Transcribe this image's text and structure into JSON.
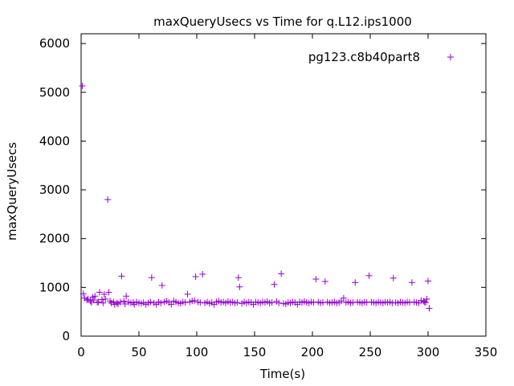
{
  "chart_data": {
    "type": "scatter",
    "title": "maxQueryUsecs vs Time for q.L12.ips1000",
    "xlabel": "Time(s)",
    "ylabel": "maxQueryUsecs",
    "xlim": [
      0,
      350
    ],
    "ylim": [
      0,
      6200
    ],
    "x_ticks": [
      0,
      50,
      100,
      150,
      200,
      250,
      300,
      350
    ],
    "y_ticks": [
      0,
      1000,
      2000,
      3000,
      4000,
      5000,
      6000
    ],
    "grid": false,
    "legend_position": "top-right",
    "color": "#9400d3",
    "marker": "plus",
    "series": [
      {
        "name": "pg123.c8b40part8",
        "points": [
          [
            1,
            5130
          ],
          [
            2,
            870
          ],
          [
            3,
            780
          ],
          [
            5,
            740
          ],
          [
            6,
            760
          ],
          [
            8,
            720
          ],
          [
            9,
            690
          ],
          [
            10,
            800
          ],
          [
            11,
            740
          ],
          [
            12,
            820
          ],
          [
            14,
            690
          ],
          [
            15,
            700
          ],
          [
            16,
            900
          ],
          [
            18,
            750
          ],
          [
            19,
            680
          ],
          [
            20,
            860
          ],
          [
            21,
            760
          ],
          [
            23,
            2800
          ],
          [
            24,
            900
          ],
          [
            25,
            720
          ],
          [
            26,
            680
          ],
          [
            28,
            700
          ],
          [
            29,
            650
          ],
          [
            31,
            680
          ],
          [
            32,
            660
          ],
          [
            34,
            700
          ],
          [
            35,
            1230
          ],
          [
            37,
            720
          ],
          [
            38,
            660
          ],
          [
            39,
            820
          ],
          [
            41,
            700
          ],
          [
            43,
            680
          ],
          [
            45,
            690
          ],
          [
            46,
            650
          ],
          [
            48,
            700
          ],
          [
            50,
            680
          ],
          [
            52,
            670
          ],
          [
            54,
            690
          ],
          [
            56,
            650
          ],
          [
            58,
            680
          ],
          [
            60,
            700
          ],
          [
            61,
            1200
          ],
          [
            63,
            680
          ],
          [
            65,
            650
          ],
          [
            67,
            700
          ],
          [
            69,
            680
          ],
          [
            70,
            1040
          ],
          [
            72,
            700
          ],
          [
            74,
            720
          ],
          [
            76,
            690
          ],
          [
            78,
            650
          ],
          [
            80,
            720
          ],
          [
            82,
            700
          ],
          [
            84,
            680
          ],
          [
            86,
            670
          ],
          [
            88,
            700
          ],
          [
            90,
            690
          ],
          [
            92,
            860
          ],
          [
            94,
            700
          ],
          [
            96,
            720
          ],
          [
            98,
            730
          ],
          [
            99,
            1220
          ],
          [
            101,
            700
          ],
          [
            103,
            690
          ],
          [
            105,
            1270
          ],
          [
            107,
            680
          ],
          [
            109,
            700
          ],
          [
            111,
            670
          ],
          [
            113,
            690
          ],
          [
            115,
            650
          ],
          [
            117,
            700
          ],
          [
            119,
            720
          ],
          [
            121,
            690
          ],
          [
            123,
            700
          ],
          [
            125,
            680
          ],
          [
            127,
            710
          ],
          [
            129,
            690
          ],
          [
            131,
            700
          ],
          [
            133,
            680
          ],
          [
            135,
            690
          ],
          [
            136,
            1200
          ],
          [
            137,
            1010
          ],
          [
            139,
            670
          ],
          [
            141,
            700
          ],
          [
            143,
            680
          ],
          [
            145,
            700
          ],
          [
            147,
            690
          ],
          [
            149,
            650
          ],
          [
            151,
            700
          ],
          [
            153,
            690
          ],
          [
            155,
            680
          ],
          [
            157,
            700
          ],
          [
            159,
            690
          ],
          [
            161,
            710
          ],
          [
            163,
            680
          ],
          [
            165,
            690
          ],
          [
            167,
            1060
          ],
          [
            169,
            710
          ],
          [
            171,
            680
          ],
          [
            173,
            1280
          ],
          [
            175,
            670
          ],
          [
            177,
            660
          ],
          [
            179,
            690
          ],
          [
            181,
            680
          ],
          [
            183,
            700
          ],
          [
            185,
            690
          ],
          [
            187,
            650
          ],
          [
            189,
            700
          ],
          [
            191,
            690
          ],
          [
            193,
            710
          ],
          [
            195,
            690
          ],
          [
            197,
            680
          ],
          [
            199,
            700
          ],
          [
            201,
            690
          ],
          [
            203,
            1170
          ],
          [
            205,
            700
          ],
          [
            207,
            680
          ],
          [
            209,
            690
          ],
          [
            211,
            1120
          ],
          [
            213,
            700
          ],
          [
            215,
            680
          ],
          [
            217,
            690
          ],
          [
            219,
            700
          ],
          [
            221,
            680
          ],
          [
            223,
            690
          ],
          [
            225,
            720
          ],
          [
            227,
            780
          ],
          [
            229,
            690
          ],
          [
            231,
            700
          ],
          [
            233,
            680
          ],
          [
            235,
            690
          ],
          [
            237,
            1100
          ],
          [
            239,
            700
          ],
          [
            241,
            690
          ],
          [
            243,
            680
          ],
          [
            245,
            700
          ],
          [
            247,
            690
          ],
          [
            249,
            1240
          ],
          [
            251,
            700
          ],
          [
            253,
            690
          ],
          [
            255,
            680
          ],
          [
            257,
            700
          ],
          [
            259,
            690
          ],
          [
            261,
            680
          ],
          [
            263,
            700
          ],
          [
            265,
            690
          ],
          [
            267,
            700
          ],
          [
            269,
            680
          ],
          [
            270,
            1190
          ],
          [
            272,
            690
          ],
          [
            274,
            680
          ],
          [
            276,
            700
          ],
          [
            278,
            690
          ],
          [
            280,
            680
          ],
          [
            282,
            700
          ],
          [
            284,
            690
          ],
          [
            286,
            1100
          ],
          [
            288,
            700
          ],
          [
            290,
            690
          ],
          [
            292,
            680
          ],
          [
            294,
            730
          ],
          [
            296,
            720
          ],
          [
            297,
            700
          ],
          [
            298,
            690
          ],
          [
            299,
            760
          ],
          [
            300,
            1130
          ],
          [
            301,
            570
          ]
        ]
      }
    ]
  }
}
